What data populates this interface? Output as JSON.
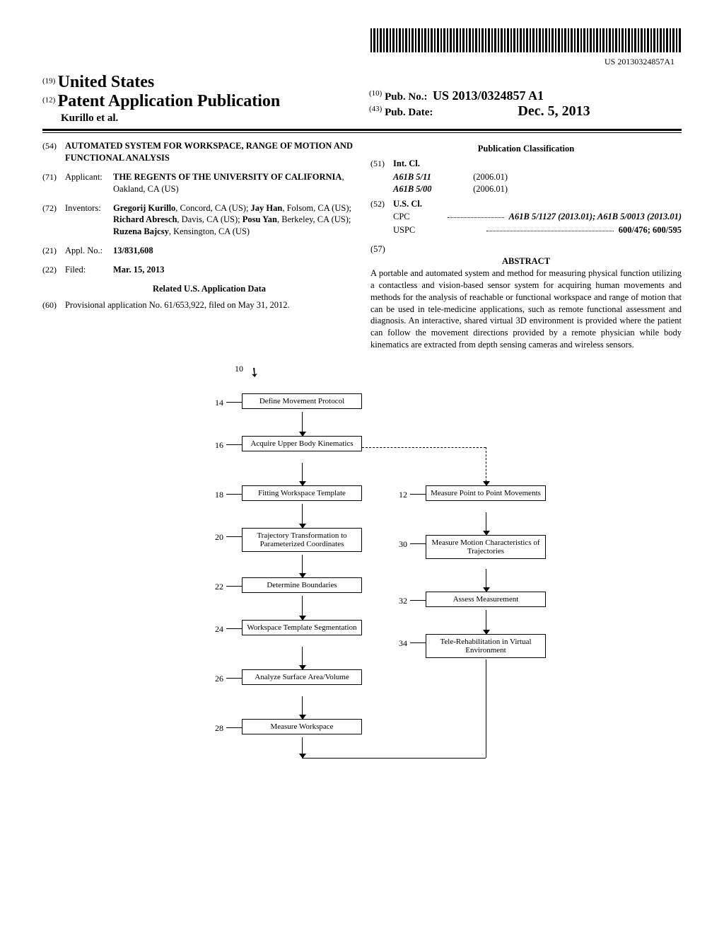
{
  "barcode_text": "US 20130324857A1",
  "country_num": "(19)",
  "country": "United States",
  "pub_type_num": "(12)",
  "pub_type": "Patent Application Publication",
  "authors": "Kurillo et al.",
  "pub_no_num": "(10)",
  "pub_no_label": "Pub. No.:",
  "pub_no": "US 2013/0324857 A1",
  "pub_date_num": "(43)",
  "pub_date_label": "Pub. Date:",
  "pub_date": "Dec. 5, 2013",
  "f54_num": "(54)",
  "f54_title": "AUTOMATED SYSTEM FOR WORKSPACE, RANGE OF MOTION AND FUNCTIONAL ANALYSIS",
  "f71_num": "(71)",
  "f71_label": "Applicant:",
  "f71_val": "THE REGENTS OF THE UNIVERSITY OF CALIFORNIA",
  "f71_loc": "Oakland, CA (US)",
  "f72_num": "(72)",
  "f72_label": "Inventors:",
  "inv1": "Gregorij Kurillo",
  "inv1_loc": ", Concord, CA (US); ",
  "inv2": "Jay Han",
  "inv2_loc": ", Folsom, CA (US); ",
  "inv3": "Richard Abresch",
  "inv3_loc": ", Davis, CA (US); ",
  "inv4": "Posu Yan",
  "inv4_loc": ", Berkeley, CA (US); ",
  "inv5": "Ruzena Bajcsy",
  "inv5_loc": ", Kensington, CA (US)",
  "f21_num": "(21)",
  "f21_label": "Appl. No.:",
  "f21_val": "13/831,608",
  "f22_num": "(22)",
  "f22_label": "Filed:",
  "f22_val": "Mar. 15, 2013",
  "related_title": "Related U.S. Application Data",
  "f60_num": "(60)",
  "f60_text": "Provisional application No. 61/653,922, filed on May 31, 2012.",
  "class_title": "Publication Classification",
  "f51_num": "(51)",
  "f51_label": "Int. Cl.",
  "intcl1": "A61B 5/11",
  "intcl1_date": "(2006.01)",
  "intcl2": "A61B 5/00",
  "intcl2_date": "(2006.01)",
  "f52_num": "(52)",
  "f52_label": "U.S. Cl.",
  "cpc_label": "CPC",
  "cpc_vals": "A61B 5/1127 (2013.01); A61B 5/0013 (2013.01)",
  "uspc_label": "USPC",
  "uspc_vals": "600/476; 600/595",
  "f57_num": "(57)",
  "abstract_label": "ABSTRACT",
  "abstract_text": "A portable and automated system and method for measuring physical function utilizing a contactless and vision-based sensor system for acquiring human movements and methods for the analysis of reachable or functional workspace and range of motion that can be used in tele-medicine applications, such as remote functional assessment and diagnosis. An interactive, shared virtual 3D environment is provided where the patient can follow the movement directions provided by a remote physician while body kinematics are extracted from depth sensing cameras and wireless sensors.",
  "flow": {
    "ref10": "10",
    "left": [
      {
        "n": "14",
        "t": "Define Movement Protocol"
      },
      {
        "n": "16",
        "t": "Acquire Upper\nBody Kinematics"
      },
      {
        "n": "18",
        "t": "Fitting Workspace Template"
      },
      {
        "n": "20",
        "t": "Trajectory Transformation to\nParameterized Coordinates"
      },
      {
        "n": "22",
        "t": "Determine Boundaries"
      },
      {
        "n": "24",
        "t": "Workspace Template\nSegmentation"
      },
      {
        "n": "26",
        "t": "Analyze Surface\nArea/Volume"
      },
      {
        "n": "28",
        "t": "Measure Workspace"
      }
    ],
    "right": [
      {
        "n": "12",
        "t": "Measure Point to\nPoint Movements"
      },
      {
        "n": "30",
        "t": "Measure Motion\nCharacteristics\nof Trajectories"
      },
      {
        "n": "32",
        "t": "Assess Measurement"
      },
      {
        "n": "34",
        "t": "Tele-Rehabilitation in\nVirtual Environment"
      }
    ]
  }
}
